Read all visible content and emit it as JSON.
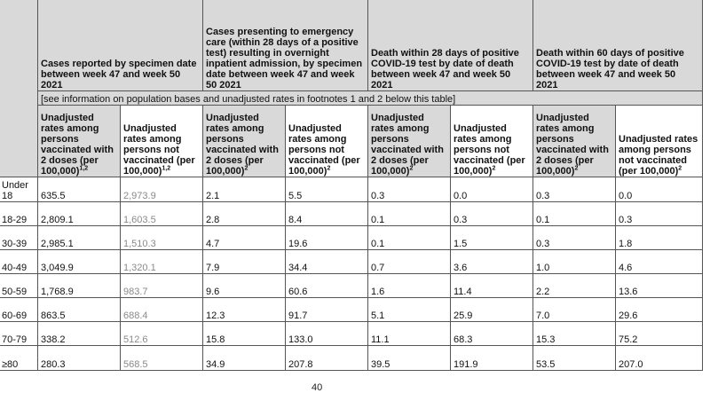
{
  "header_groups": [
    {
      "label": "Cases reported by specimen date between week 47 and week 50 2021"
    },
    {
      "label": "Cases presenting to emergency care (within 28 days of a positive test) resulting in overnight inpatient admission, by specimen date between week 47 and week 50 2021"
    },
    {
      "label": "Death within 28 days of positive COVID-19 test by date of death between week 47 and week 50 2021"
    },
    {
      "label": "Death within 60 days of positive COVID-19 test by date of death between week 47 and week 50 2021"
    }
  ],
  "footnote_row": "[see information on population bases and unadjusted rates in footnotes 1 and 2 below this table]",
  "subheaders": [
    {
      "text": "Unadjusted rates among persons vaccinated with 2 doses (per 100,000)",
      "sup": "1,2"
    },
    {
      "text": "Unadjusted rates among persons not vaccinated (per 100,000)",
      "sup": "1,2"
    },
    {
      "text": "Unadjusted rates among persons vaccinated with 2 doses (per 100,000)",
      "sup": "2"
    },
    {
      "text": "Unadjusted rates among persons not vaccinated (per 100,000)",
      "sup": "2"
    },
    {
      "text": "Unadjusted rates among persons vaccinated with 2 doses (per 100,000)",
      "sup": "2"
    },
    {
      "text": "Unadjusted rates among persons not vaccinated (per 100,000)",
      "sup": "2"
    },
    {
      "text": "Unadjusted rates among persons vaccinated with 2 doses (per 100,000)",
      "sup": "2"
    },
    {
      "text": "Unadjusted rates among persons not vaccinated (per 100,000)",
      "sup": "2"
    }
  ],
  "rows": [
    {
      "age": "Under 18",
      "values": [
        "635.5",
        "2,973.9",
        "2.1",
        "5.5",
        "0.3",
        "0.0",
        "0.3",
        "0.0"
      ]
    },
    {
      "age": "18-29",
      "values": [
        "2,809.1",
        "1,603.5",
        "2.8",
        "8.4",
        "0.1",
        "0.3",
        "0.1",
        "0.3"
      ]
    },
    {
      "age": "30-39",
      "values": [
        "2,985.1",
        "1,510.3",
        "4.7",
        "19.6",
        "0.1",
        "1.5",
        "0.3",
        "1.8"
      ]
    },
    {
      "age": "40-49",
      "values": [
        "3,049.9",
        "1,320.1",
        "7.9",
        "34.4",
        "0.7",
        "3.6",
        "1.0",
        "4.6"
      ]
    },
    {
      "age": "50-59",
      "values": [
        "1,768.9",
        "983.7",
        "9.6",
        "60.6",
        "1.6",
        "11.4",
        "2.2",
        "13.6"
      ]
    },
    {
      "age": "60-69",
      "values": [
        "863.5",
        "688.4",
        "12.3",
        "91.7",
        "5.1",
        "25.9",
        "7.0",
        "29.6"
      ]
    },
    {
      "age": "70-79",
      "values": [
        "338.2",
        "512.6",
        "15.8",
        "133.0",
        "11.1",
        "68.3",
        "15.3",
        "75.2"
      ]
    },
    {
      "age": "≥80",
      "values": [
        "280.3",
        "568.5",
        "34.9",
        "207.8",
        "39.5",
        "191.9",
        "53.5",
        "207.0"
      ]
    }
  ],
  "page_number": "40"
}
